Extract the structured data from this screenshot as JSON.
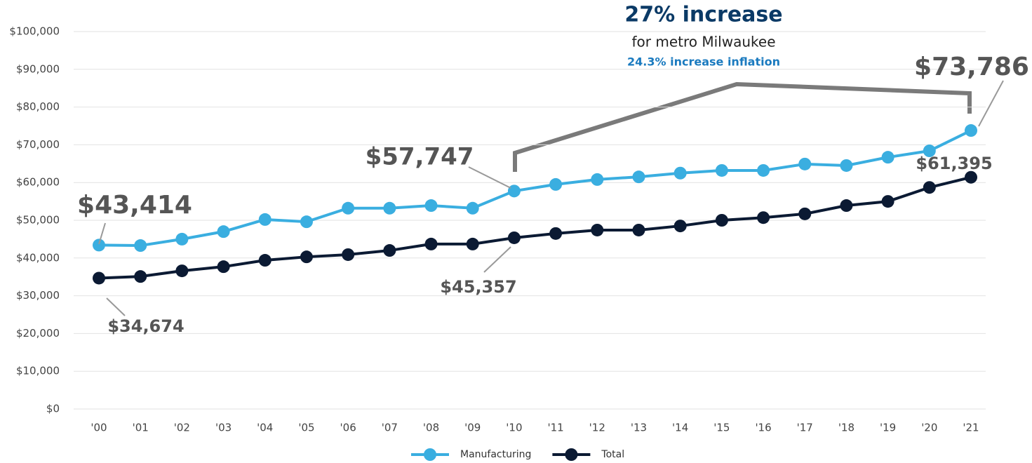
{
  "chart_data": {
    "type": "line",
    "annotations": [
      "27% increase",
      "for metro Milwaukee",
      "24.3% increase inflation"
    ],
    "categories": [
      "'00",
      "'01",
      "'02",
      "'03",
      "'04",
      "'05",
      "'06",
      "'07",
      "'08",
      "'09",
      "'10",
      "'11",
      "'12",
      "'13",
      "'14",
      "'15",
      "'16",
      "'17",
      "'18",
      "'19",
      "'20",
      "'21"
    ],
    "series": [
      {
        "name": "Manufacturing",
        "color": "#3aaee0",
        "values": [
          43414,
          43300,
          45000,
          47000,
          50200,
          49600,
          53200,
          53200,
          53900,
          53200,
          57747,
          59500,
          60800,
          61500,
          62500,
          63200,
          63200,
          64900,
          64500,
          66700,
          68400,
          73786
        ],
        "value_labels": [
          "$43,414",
          null,
          null,
          null,
          null,
          null,
          null,
          null,
          null,
          null,
          "$57,747",
          null,
          null,
          null,
          null,
          null,
          null,
          null,
          null,
          null,
          null,
          "$73,786"
        ]
      },
      {
        "name": "Total",
        "color": "#0b1a33",
        "values": [
          34674,
          35100,
          36600,
          37700,
          39400,
          40300,
          40900,
          42000,
          43700,
          43700,
          45357,
          46500,
          47400,
          47400,
          48500,
          50000,
          50700,
          51700,
          53900,
          55000,
          58700,
          61395
        ],
        "value_labels": [
          "$34,674",
          null,
          null,
          null,
          null,
          null,
          null,
          null,
          null,
          null,
          "$45,357",
          null,
          null,
          null,
          null,
          null,
          null,
          null,
          null,
          null,
          null,
          "$61,395"
        ]
      }
    ],
    "ylim": [
      0,
      100000
    ],
    "yticks": [
      {
        "value": 0,
        "label": "$0"
      },
      {
        "value": 10000,
        "label": "$10,000"
      },
      {
        "value": 20000,
        "label": "$20,000"
      },
      {
        "value": 30000,
        "label": "$30,000"
      },
      {
        "value": 40000,
        "label": "$40,000"
      },
      {
        "value": 50000,
        "label": "$50,000"
      },
      {
        "value": 60000,
        "label": "$60,000"
      },
      {
        "value": 70000,
        "label": "$70,000"
      },
      {
        "value": 80000,
        "label": "$80,000"
      },
      {
        "value": 90000,
        "label": "$90,000"
      },
      {
        "value": 100000,
        "label": "$100,000"
      }
    ],
    "grid": true,
    "legend": "bottom"
  }
}
